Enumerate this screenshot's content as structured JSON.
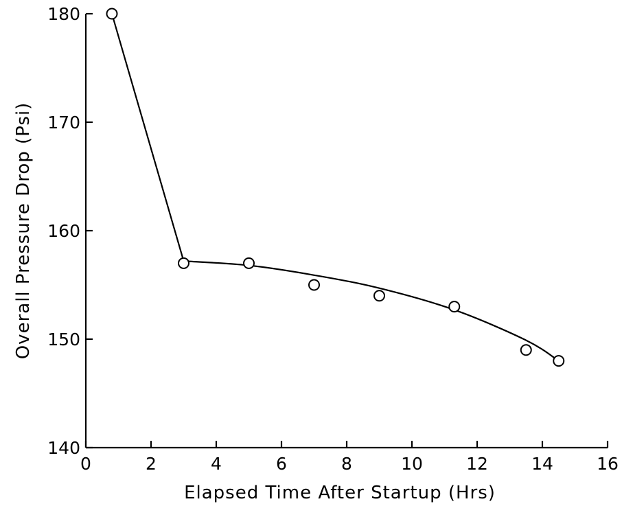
{
  "chart_data": {
    "type": "line",
    "title": "",
    "xlabel": "Elapsed Time After Startup (Hrs)",
    "ylabel": "Overall Pressure Drop (Psi)",
    "xlim": [
      0,
      16
    ],
    "ylim": [
      140,
      180
    ],
    "x_ticks": [
      "0",
      "2",
      "4",
      "6",
      "8",
      "10",
      "12",
      "14",
      "16"
    ],
    "y_ticks": [
      "140",
      "150",
      "160",
      "170",
      "180"
    ],
    "grid": false,
    "series": [
      {
        "points": [
          {
            "x": 0.8,
            "y": 180
          },
          {
            "x": 3.0,
            "y": 157
          },
          {
            "x": 5.0,
            "y": 157
          },
          {
            "x": 7.0,
            "y": 155
          },
          {
            "x": 9.0,
            "y": 154
          },
          {
            "x": 11.3,
            "y": 153
          },
          {
            "x": 13.5,
            "y": 149
          },
          {
            "x": 14.5,
            "y": 148
          }
        ],
        "curve": [
          {
            "x": 0.8,
            "y": 180
          },
          {
            "x": 3.0,
            "y": 157.2
          },
          {
            "x": 5.0,
            "y": 156.8
          },
          {
            "x": 7.0,
            "y": 155.9
          },
          {
            "x": 9.0,
            "y": 154.7
          },
          {
            "x": 11.3,
            "y": 152.7
          },
          {
            "x": 13.5,
            "y": 149.9
          },
          {
            "x": 14.5,
            "y": 148
          }
        ]
      }
    ]
  }
}
